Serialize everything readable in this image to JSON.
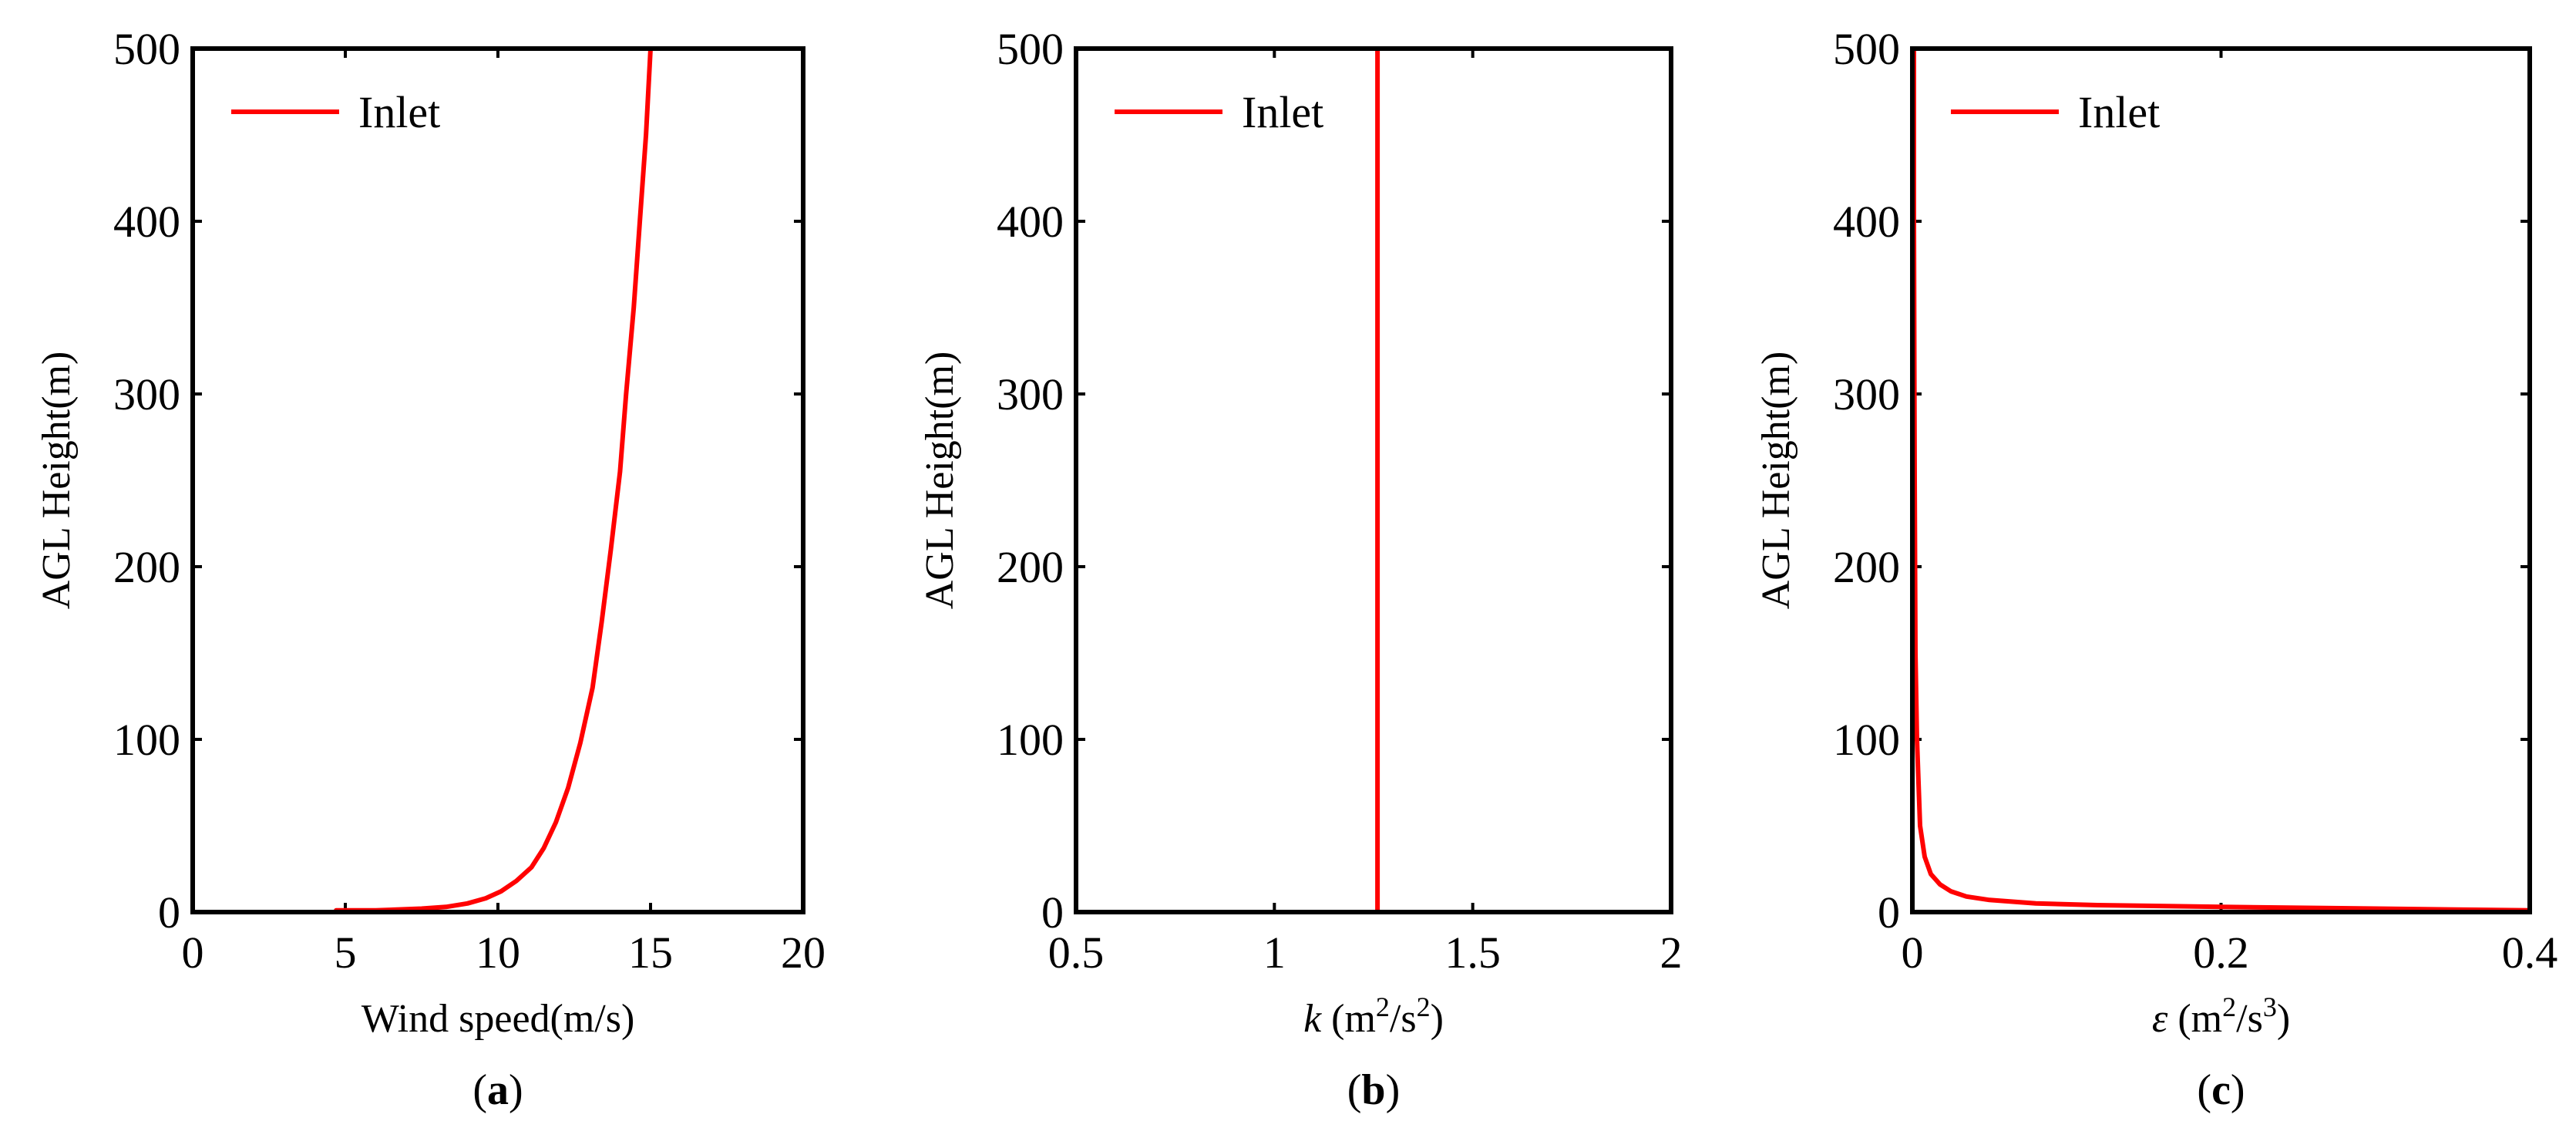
{
  "colors": {
    "series": "#ff0000",
    "axes": "#000000"
  },
  "chart_data": [
    {
      "type": "line",
      "panel_label": "a",
      "xlabel_parts": [
        "Wind speed(m/s)"
      ],
      "ylabel": "AGL Height(m)",
      "xlim": [
        0,
        20
      ],
      "ylim": [
        0,
        500
      ],
      "xticks": [
        "0",
        "5",
        "10",
        "15",
        "20"
      ],
      "yticks": [
        "0",
        "100",
        "200",
        "300",
        "400",
        "500"
      ],
      "legend": {
        "position": "top-left",
        "entries": [
          "Inlet"
        ]
      },
      "series": [
        {
          "name": "Inlet",
          "x": [
            4.7,
            6.0,
            7.5,
            8.3,
            9.0,
            9.6,
            10.1,
            10.6,
            11.1,
            11.5,
            11.9,
            12.3,
            12.7,
            13.1,
            13.4,
            13.7,
            14.0,
            14.2,
            14.45,
            14.65,
            14.85,
            15.0
          ],
          "y": [
            1,
            1,
            2,
            3,
            5,
            8,
            12,
            18,
            26,
            37,
            52,
            72,
            98,
            130,
            168,
            210,
            255,
            300,
            350,
            400,
            450,
            500
          ]
        }
      ]
    },
    {
      "type": "line",
      "panel_label": "b",
      "xlabel_parts": [
        "k",
        " (m",
        "2",
        "/s",
        "2",
        ")"
      ],
      "ylabel": "AGL Height(m)",
      "xlim": [
        0.5,
        2
      ],
      "ylim": [
        0,
        500
      ],
      "xticks": [
        "0.5",
        "1",
        "1.5",
        "2"
      ],
      "yticks": [
        "0",
        "100",
        "200",
        "300",
        "400",
        "500"
      ],
      "legend": {
        "position": "top-left",
        "entries": [
          "Inlet"
        ]
      },
      "series": [
        {
          "name": "Inlet",
          "x": [
            1.26,
            1.26
          ],
          "y": [
            0,
            500
          ]
        }
      ]
    },
    {
      "type": "line",
      "panel_label": "c",
      "xlabel_parts": [
        "ε",
        " (m",
        "2",
        "/s",
        "3",
        ")"
      ],
      "ylabel": "AGL Height(m)",
      "xlim": [
        0,
        0.4
      ],
      "ylim": [
        0,
        500
      ],
      "xticks": [
        "0",
        "0.2",
        "0.4"
      ],
      "yticks": [
        "0",
        "100",
        "200",
        "300",
        "400",
        "500"
      ],
      "legend": {
        "position": "top-left",
        "entries": [
          "Inlet"
        ]
      },
      "series": [
        {
          "name": "Inlet",
          "x": [
            0.4,
            0.3,
            0.2,
            0.12,
            0.08,
            0.05,
            0.035,
            0.025,
            0.018,
            0.012,
            0.008,
            0.005,
            0.004,
            0.003,
            0.002,
            0.0015,
            0.001,
            0.001
          ],
          "y": [
            1,
            2,
            3,
            4,
            5,
            7,
            9,
            12,
            16,
            22,
            32,
            50,
            75,
            100,
            150,
            250,
            400,
            500
          ]
        }
      ]
    }
  ]
}
